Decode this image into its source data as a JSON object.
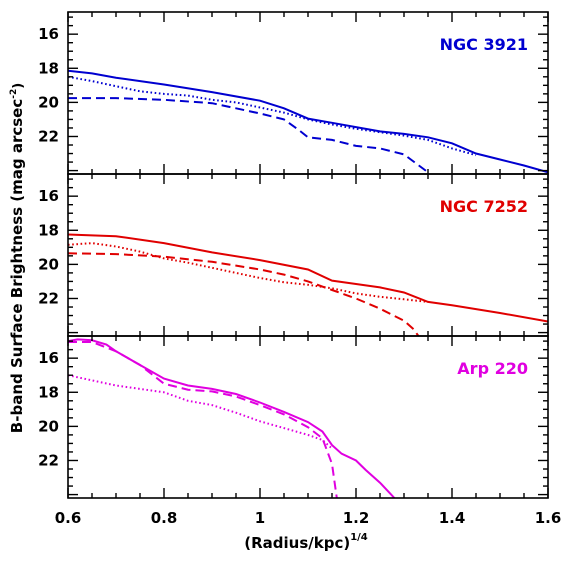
{
  "figure": {
    "xlabel": "(Radius/kpc)",
    "xlabel_exponent": "1/4",
    "ylabel": "B-band Surface Brightness (mag arcsec",
    "ylabel_exponent": "-2",
    "ylabel_close": ")"
  },
  "chart_data": [
    {
      "type": "line",
      "title": "NGC 3921",
      "title_color": "#0000d0",
      "color": "#0000d0",
      "xlim": [
        0.6,
        1.6
      ],
      "ylim": [
        24.2,
        14.7
      ],
      "xticks": [
        0.6,
        0.8,
        1.0,
        1.2,
        1.4,
        1.6
      ],
      "xtick_labels": [
        "0.6",
        "0.8",
        "1",
        "1.2",
        "1.4",
        "1.6"
      ],
      "yticks": [
        16,
        18,
        20,
        22
      ],
      "ytick_labels": [
        "16",
        "18",
        "20",
        "22"
      ],
      "series": [
        {
          "style": "solid",
          "x": [
            0.6,
            0.65,
            0.7,
            0.8,
            0.9,
            1.0,
            1.05,
            1.1,
            1.15,
            1.2,
            1.25,
            1.3,
            1.35,
            1.4,
            1.45,
            1.5,
            1.55,
            1.6
          ],
          "y": [
            18.15,
            18.3,
            18.55,
            18.95,
            19.4,
            19.9,
            20.35,
            20.95,
            21.2,
            21.45,
            21.7,
            21.85,
            22.05,
            22.4,
            23.0,
            23.35,
            23.7,
            24.1
          ]
        },
        {
          "style": "dotted",
          "x": [
            0.6,
            0.65,
            0.7,
            0.75,
            0.8,
            0.85,
            0.9,
            0.95,
            1.0,
            1.05,
            1.1,
            1.15,
            1.2,
            1.25,
            1.3,
            1.35,
            1.4,
            1.45
          ],
          "y": [
            18.5,
            18.75,
            19.05,
            19.35,
            19.5,
            19.6,
            19.85,
            20.0,
            20.3,
            20.6,
            21.0,
            21.3,
            21.55,
            21.75,
            21.95,
            22.2,
            22.7,
            23.1
          ]
        },
        {
          "style": "dashed",
          "x": [
            0.6,
            0.7,
            0.8,
            0.9,
            0.95,
            1.0,
            1.05,
            1.08,
            1.1,
            1.15,
            1.2,
            1.25,
            1.3,
            1.35
          ],
          "y": [
            19.75,
            19.75,
            19.85,
            20.05,
            20.35,
            20.65,
            21.0,
            21.6,
            22.05,
            22.2,
            22.55,
            22.7,
            23.05,
            24.1
          ]
        }
      ]
    },
    {
      "type": "line",
      "title": "NGC 7252",
      "title_color": "#e00000",
      "color": "#e00000",
      "xlim": [
        0.6,
        1.6
      ],
      "ylim": [
        24.2,
        14.7
      ],
      "xticks": [
        0.6,
        0.8,
        1.0,
        1.2,
        1.4,
        1.6
      ],
      "yticks": [
        16,
        18,
        20,
        22
      ],
      "ytick_labels": [
        "16",
        "18",
        "20",
        "22"
      ],
      "series": [
        {
          "style": "solid",
          "x": [
            0.6,
            0.7,
            0.8,
            0.9,
            1.0,
            1.1,
            1.15,
            1.2,
            1.25,
            1.3,
            1.35,
            1.4,
            1.5,
            1.6
          ],
          "y": [
            18.25,
            18.35,
            18.75,
            19.3,
            19.75,
            20.3,
            20.95,
            21.15,
            21.35,
            21.65,
            22.2,
            22.4,
            22.85,
            23.35
          ]
        },
        {
          "style": "dotted",
          "x": [
            0.6,
            0.65,
            0.7,
            0.75,
            0.8,
            0.85,
            0.9,
            0.95,
            1.0,
            1.05,
            1.1,
            1.15,
            1.2,
            1.25,
            1.3,
            1.35
          ],
          "y": [
            18.85,
            18.75,
            18.95,
            19.25,
            19.65,
            19.9,
            20.2,
            20.5,
            20.8,
            21.05,
            21.2,
            21.4,
            21.7,
            21.9,
            22.05,
            22.2
          ]
        },
        {
          "style": "dashed",
          "x": [
            0.6,
            0.7,
            0.8,
            0.9,
            1.0,
            1.05,
            1.1,
            1.15,
            1.2,
            1.25,
            1.3,
            1.32,
            1.33
          ],
          "y": [
            19.35,
            19.4,
            19.55,
            19.85,
            20.3,
            20.6,
            21.0,
            21.5,
            22.0,
            22.6,
            23.3,
            23.8,
            24.2
          ]
        }
      ]
    },
    {
      "type": "line",
      "title": "Arp 220",
      "title_color": "#e000e0",
      "color": "#e000e0",
      "xlim": [
        0.6,
        1.6
      ],
      "ylim": [
        24.2,
        14.7
      ],
      "xticks": [
        0.6,
        0.8,
        1.0,
        1.2,
        1.4,
        1.6
      ],
      "yticks": [
        16,
        18,
        20,
        22
      ],
      "ytick_labels": [
        "16",
        "18",
        "20",
        "22"
      ],
      "series": [
        {
          "style": "solid",
          "x": [
            0.6,
            0.62,
            0.65,
            0.68,
            0.7,
            0.75,
            0.8,
            0.85,
            0.9,
            0.95,
            1.0,
            1.05,
            1.1,
            1.13,
            1.15,
            1.17,
            1.2,
            1.22,
            1.25,
            1.28
          ],
          "y": [
            15.0,
            14.9,
            14.95,
            15.2,
            15.6,
            16.4,
            17.2,
            17.6,
            17.8,
            18.1,
            18.6,
            19.15,
            19.75,
            20.3,
            21.1,
            21.6,
            22.0,
            22.55,
            23.3,
            24.2
          ]
        },
        {
          "style": "dashed",
          "x": [
            0.6,
            0.65,
            0.7,
            0.75,
            0.8,
            0.85,
            0.9,
            0.95,
            1.0,
            1.05,
            1.1,
            1.13,
            1.15,
            1.16
          ],
          "y": [
            15.05,
            15.05,
            15.6,
            16.4,
            17.5,
            17.85,
            17.95,
            18.25,
            18.75,
            19.3,
            20.05,
            20.7,
            22.2,
            24.2
          ]
        },
        {
          "style": "dotted",
          "x": [
            0.6,
            0.7,
            0.8,
            0.85,
            0.9,
            0.95,
            1.0,
            1.05,
            1.1,
            1.13,
            1.15
          ],
          "y": [
            17.0,
            17.6,
            18.0,
            18.5,
            18.75,
            19.2,
            19.7,
            20.1,
            20.5,
            20.8,
            21.3
          ]
        }
      ]
    }
  ]
}
